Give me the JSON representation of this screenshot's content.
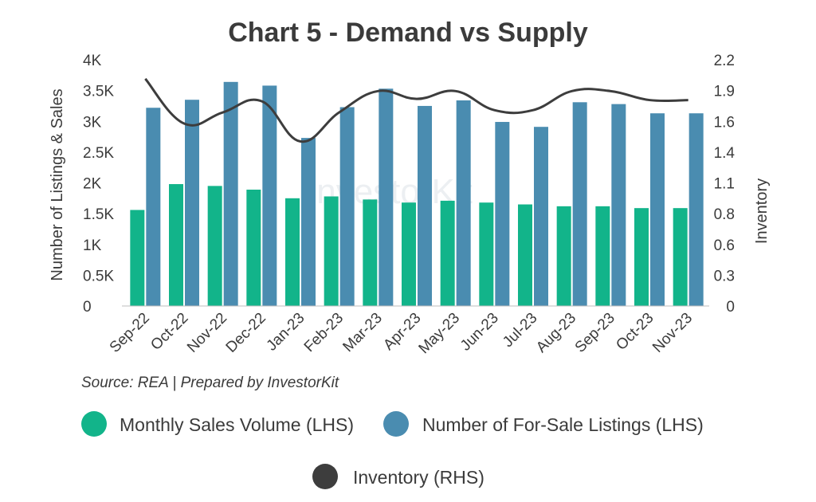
{
  "chart_data": {
    "type": "bar",
    "title": "Chart 5 - Demand vs Supply",
    "ylabel": "Number of Listings & Sales",
    "y2label": "Inventory",
    "ylim": [
      0,
      4000
    ],
    "y2lim": [
      0,
      2.2
    ],
    "yticks": [
      "0",
      "0.5K",
      "1K",
      "1.5K",
      "2K",
      "2.5K",
      "3K",
      "3.5K",
      "4K"
    ],
    "y2ticks": [
      "0",
      "0.3",
      "0.6",
      "0.8",
      "1.1",
      "1.4",
      "1.6",
      "1.9",
      "2.2"
    ],
    "categories": [
      "Sep-22",
      "Oct-22",
      "Nov-22",
      "Dec-22",
      "Jan-23",
      "Feb-23",
      "Mar-23",
      "Apr-23",
      "May-23",
      "Jun-23",
      "Jul-23",
      "Aug-23",
      "Sep-23",
      "Oct-23",
      "Nov-23"
    ],
    "series": [
      {
        "name": "Monthly Sales Volume (LHS)",
        "axis": "left",
        "kind": "bar",
        "color": "#12b48a",
        "values": [
          1560,
          1980,
          1950,
          1890,
          1750,
          1780,
          1730,
          1680,
          1710,
          1680,
          1650,
          1620,
          1620,
          1590,
          1590
        ]
      },
      {
        "name": "Number of For-Sale Listings (LHS)",
        "axis": "left",
        "kind": "bar",
        "color": "#4a8cb0",
        "values": [
          3220,
          3350,
          3640,
          3580,
          2730,
          3230,
          3530,
          3250,
          3340,
          2990,
          2910,
          3310,
          3280,
          3130,
          3130
        ]
      },
      {
        "name": "Inventory (RHS)",
        "axis": "right",
        "kind": "line",
        "color": "#3d3d3d",
        "values": [
          2.03,
          1.63,
          1.73,
          1.83,
          1.47,
          1.73,
          1.92,
          1.85,
          1.92,
          1.75,
          1.75,
          1.92,
          1.92,
          1.84,
          1.84
        ]
      }
    ],
    "legend_position": "bottom",
    "grid": false
  },
  "source_text": "Source: REA | Prepared by InvestorKit",
  "watermark_text": "InvestorKit"
}
